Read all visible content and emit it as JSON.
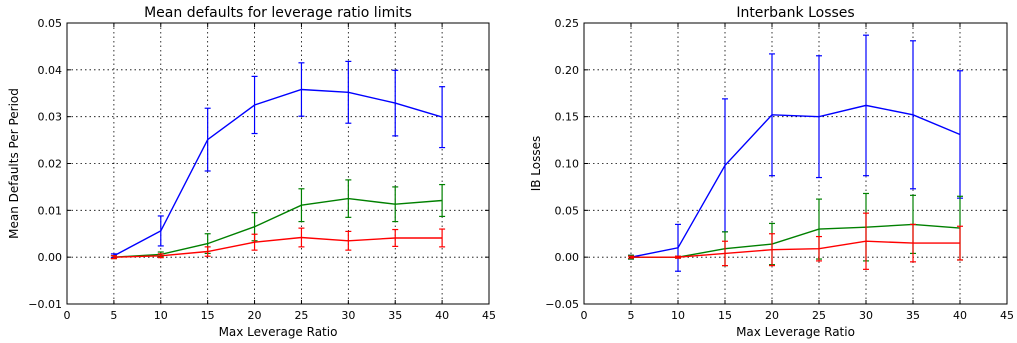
{
  "chart_data": [
    {
      "type": "line",
      "title": "Mean defaults for leverage ratio limits",
      "xlabel": "Max Leverage Ratio",
      "ylabel": "Mean Defaults Per Period",
      "xlim": [
        0,
        45
      ],
      "ylim": [
        -0.01,
        0.05
      ],
      "xticks": [
        0,
        5,
        10,
        15,
        20,
        25,
        30,
        35,
        40,
        45
      ],
      "xtick_labels": [
        "0",
        "5",
        "10",
        "15",
        "20",
        "25",
        "30",
        "35",
        "40",
        "45"
      ],
      "yticks": [
        -0.01,
        0.0,
        0.01,
        0.02,
        0.03,
        0.04,
        0.05
      ],
      "ytick_labels": [
        "−0.01",
        "0.00",
        "0.01",
        "0.02",
        "0.03",
        "0.04",
        "0.05"
      ],
      "grid": true,
      "x": [
        5,
        10,
        15,
        20,
        25,
        30,
        35,
        40
      ],
      "series": [
        {
          "color": "#0000ff",
          "values": [
            0.0003,
            0.0056,
            0.0251,
            0.0325,
            0.0358,
            0.0352,
            0.0329,
            0.0299
          ],
          "err": [
            0.0004,
            0.0032,
            0.0067,
            0.0061,
            0.0057,
            0.0066,
            0.007,
            0.0065
          ]
        },
        {
          "color": "#008000",
          "values": [
            0.0,
            0.0006,
            0.0029,
            0.0065,
            0.0111,
            0.0125,
            0.0113,
            0.0121
          ],
          "err": [
            0.0003,
            0.0005,
            0.0021,
            0.003,
            0.0035,
            0.004,
            0.0037,
            0.0034
          ]
        },
        {
          "color": "#ff0000",
          "values": [
            0.0,
            0.0003,
            0.0012,
            0.0032,
            0.0042,
            0.0035,
            0.0041,
            0.0041
          ],
          "err": [
            0.0003,
            0.0004,
            0.001,
            0.0017,
            0.002,
            0.002,
            0.0018,
            0.0019
          ]
        }
      ]
    },
    {
      "type": "line",
      "title": "Interbank Losses",
      "xlabel": "Max Leverage Ratio",
      "ylabel": "IB Losses",
      "xlim": [
        0,
        45
      ],
      "ylim": [
        -0.05,
        0.25
      ],
      "xticks": [
        0,
        5,
        10,
        15,
        20,
        25,
        30,
        35,
        40,
        45
      ],
      "xtick_labels": [
        "0",
        "5",
        "10",
        "15",
        "20",
        "25",
        "30",
        "35",
        "40",
        "45"
      ],
      "yticks": [
        -0.05,
        0.0,
        0.05,
        0.1,
        0.15,
        0.2,
        0.25
      ],
      "ytick_labels": [
        "−0.05",
        "0.00",
        "0.05",
        "0.10",
        "0.15",
        "0.20",
        "0.25"
      ],
      "grid": true,
      "x": [
        5,
        10,
        15,
        20,
        25,
        30,
        35,
        40
      ],
      "series": [
        {
          "color": "#0000ff",
          "values": [
            0.0,
            0.01,
            0.098,
            0.152,
            0.15,
            0.162,
            0.152,
            0.131
          ],
          "err": [
            0.002,
            0.025,
            0.071,
            0.065,
            0.065,
            0.075,
            0.079,
            0.068
          ]
        },
        {
          "color": "#008000",
          "values": [
            0.0,
            0.0,
            0.009,
            0.014,
            0.03,
            0.032,
            0.035,
            0.031
          ],
          "err": [
            0.002,
            0.001,
            0.018,
            0.022,
            0.032,
            0.036,
            0.031,
            0.034
          ]
        },
        {
          "color": "#ff0000",
          "values": [
            0.0,
            0.0,
            0.004,
            0.008,
            0.009,
            0.017,
            0.015,
            0.015
          ],
          "err": [
            0.001,
            0.001,
            0.013,
            0.017,
            0.013,
            0.03,
            0.02,
            0.018
          ]
        }
      ]
    }
  ]
}
